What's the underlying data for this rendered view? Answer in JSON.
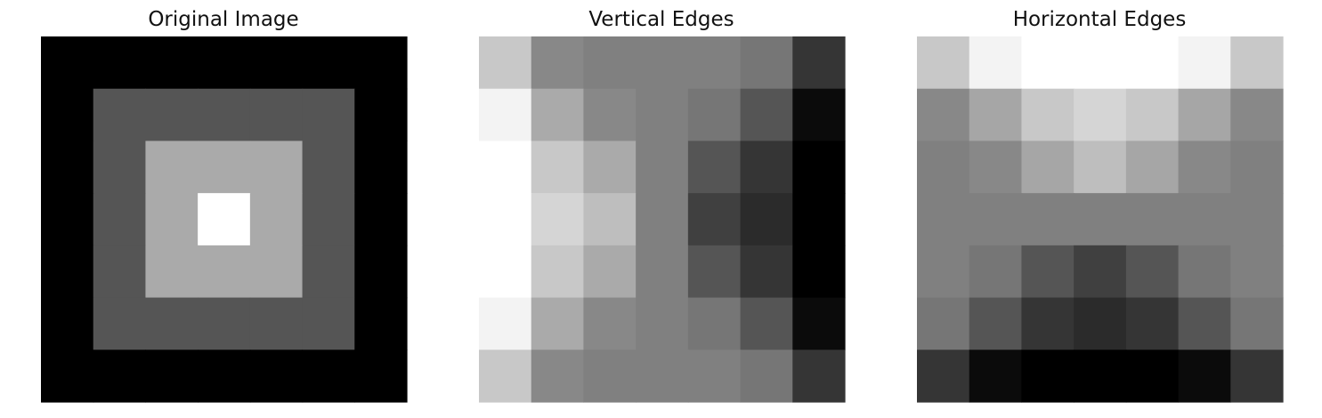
{
  "figure": {
    "background": "#ffffff",
    "colormap": "gray"
  },
  "chart_data": [
    {
      "type": "heatmap",
      "title": "Original Image",
      "axes": "off",
      "grid": false,
      "vmin": 0,
      "vmax": 255,
      "rows": 7,
      "cols": 7,
      "values": [
        [
          0,
          0,
          0,
          0,
          0,
          0,
          0
        ],
        [
          0,
          85,
          85,
          85,
          85,
          85,
          0
        ],
        [
          0,
          85,
          170,
          170,
          170,
          85,
          0
        ],
        [
          0,
          85,
          170,
          255,
          170,
          85,
          0
        ],
        [
          0,
          85,
          170,
          170,
          170,
          85,
          0
        ],
        [
          0,
          85,
          85,
          85,
          85,
          85,
          0
        ],
        [
          0,
          0,
          0,
          0,
          0,
          0,
          0
        ]
      ]
    },
    {
      "type": "heatmap",
      "title": "Vertical Edges",
      "axes": "off",
      "grid": false,
      "vmin": 0,
      "vmax": 255,
      "rows": 7,
      "cols": 7,
      "values": [
        [
          200,
          136,
          128,
          128,
          128,
          118,
          53
        ],
        [
          243,
          170,
          136,
          128,
          118,
          85,
          11
        ],
        [
          255,
          200,
          170,
          128,
          85,
          53,
          0
        ],
        [
          255,
          213,
          190,
          128,
          64,
          43,
          0
        ],
        [
          255,
          200,
          170,
          128,
          85,
          53,
          0
        ],
        [
          243,
          170,
          136,
          128,
          118,
          85,
          11
        ],
        [
          200,
          136,
          128,
          128,
          128,
          118,
          53
        ]
      ]
    },
    {
      "type": "heatmap",
      "title": "Horizontal Edges",
      "axes": "off",
      "grid": false,
      "vmin": 0,
      "vmax": 255,
      "rows": 7,
      "cols": 7,
      "values": [
        [
          200,
          243,
          255,
          255,
          255,
          243,
          200
        ],
        [
          136,
          166,
          200,
          213,
          200,
          166,
          136
        ],
        [
          128,
          136,
          166,
          190,
          166,
          136,
          128
        ],
        [
          128,
          128,
          128,
          128,
          128,
          128,
          128
        ],
        [
          128,
          118,
          85,
          64,
          85,
          118,
          128
        ],
        [
          118,
          85,
          53,
          43,
          53,
          85,
          118
        ],
        [
          53,
          11,
          0,
          0,
          0,
          11,
          53
        ]
      ]
    }
  ]
}
